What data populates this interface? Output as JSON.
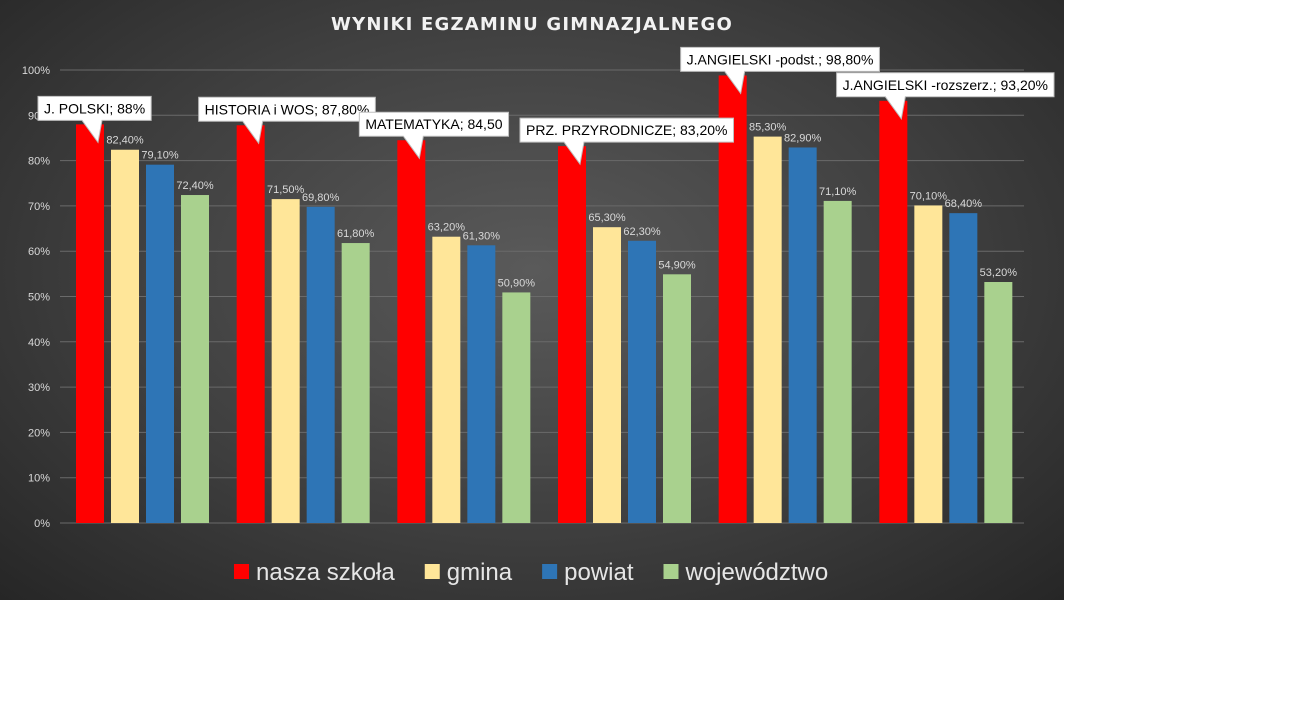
{
  "chart_data": {
    "type": "bar",
    "title": "WYNIKI  EGZAMINU  GIMNAZJALNEGO",
    "xlabel": "",
    "ylabel": "",
    "ylim": [
      0,
      1
    ],
    "yticks": [
      "0%",
      "10%",
      "20%",
      "30%",
      "40%",
      "50%",
      "60%",
      "70%",
      "80%",
      "90%",
      "100%"
    ],
    "grid": true,
    "legend_position": "bottom",
    "categories": [
      "J. POLSKI",
      "HISTORIA i WOS",
      "MATEMATYKA",
      "PRZ. PRZYRODNICZE",
      "J.ANGIELSKI -podst.",
      "J.ANGIELSKI -rozszerz."
    ],
    "series": [
      {
        "name": "nasza szkoła",
        "color": "#ff0000",
        "values": [
          0.88,
          0.878,
          0.845,
          0.832,
          0.988,
          0.932
        ],
        "labels": [
          "J. POLSKI; 88%",
          "HISTORIA i WOS; 87,80%",
          "MATEMATYKA; 84,50",
          "PRZ. PRZYRODNICZE; 83,20%",
          "J.ANGIELSKI -podst.; 98,80%",
          "J.ANGIELSKI -rozszerz.; 93,20%"
        ]
      },
      {
        "name": "gmina",
        "color": "#ffe699",
        "values": [
          0.824,
          0.715,
          0.632,
          0.653,
          0.853,
          0.701
        ],
        "labels": [
          "82,40%",
          "71,50%",
          "63,20%",
          "65,30%",
          "85,30%",
          "70,10%"
        ]
      },
      {
        "name": "powiat",
        "color": "#2e75b6",
        "values": [
          0.791,
          0.698,
          0.613,
          0.623,
          0.829,
          0.684
        ],
        "labels": [
          "79,10%",
          "69,80%",
          "61,30%",
          "62,30%",
          "82,90%",
          "68,40%"
        ]
      },
      {
        "name": "województwo",
        "color": "#a9d18e",
        "values": [
          0.724,
          0.618,
          0.509,
          0.549,
          0.711,
          0.532
        ],
        "labels": [
          "72,40%",
          "61,80%",
          "50,90%",
          "54,90%",
          "71,10%",
          "53,20%"
        ]
      }
    ]
  }
}
